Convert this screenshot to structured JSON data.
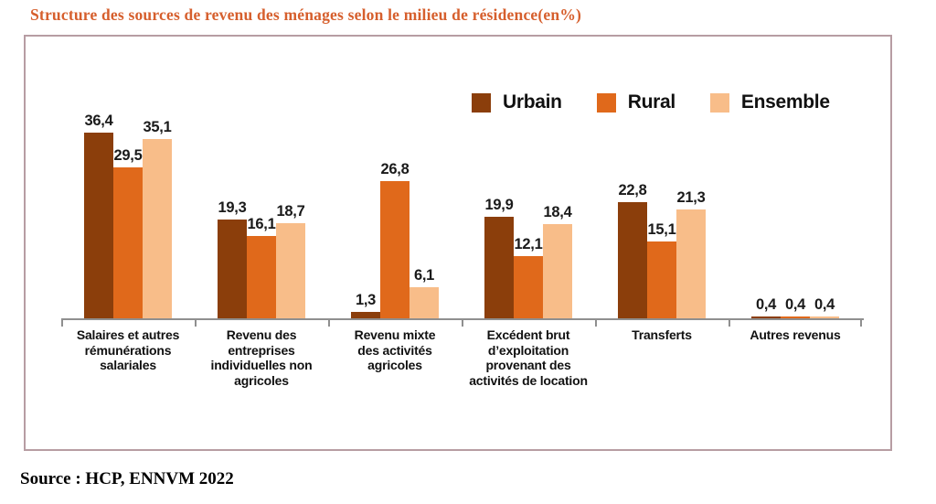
{
  "title": "Structure des sources de revenu des ménages selon le milieu de résidence(en%)",
  "source_note": "Source : HCP, ENNVM 2022",
  "colors": {
    "title_accent": "#D65F2D",
    "box_border": "#b79da3",
    "axis": "#8f8f8f",
    "urbain": "#8B3E0B",
    "rural": "#E0691B",
    "ensemble": "#F8BD89"
  },
  "chart_data": {
    "type": "bar",
    "title": "Structure des sources de revenu des ménages selon le milieu de résidence(en%)",
    "categories": [
      "Salaires et autres\nrémunérations\nsalariales",
      "Revenu des\nentreprises\nindividuelles non\nagricoles",
      "Revenu mixte\ndes activités\nagricoles",
      "Excédent brut\nd’exploitation\nprovenant des\nactivités de location",
      "Transferts",
      "Autres revenus"
    ],
    "series": [
      {
        "name": "Urbain",
        "color": "#8B3E0B",
        "values": [
          36.4,
          19.3,
          1.3,
          19.9,
          22.8,
          0.4
        ]
      },
      {
        "name": "Rural",
        "color": "#E0691B",
        "values": [
          29.5,
          16.1,
          26.8,
          12.1,
          15.1,
          0.4
        ]
      },
      {
        "name": "Ensemble",
        "color": "#F8BD89",
        "values": [
          35.1,
          18.7,
          6.1,
          18.4,
          21.3,
          0.4
        ]
      }
    ],
    "ylim": [
      0,
      40
    ],
    "value_label_decimal": ",",
    "legend_position": "top-right",
    "grid": false,
    "xlabel": "",
    "ylabel": ""
  }
}
